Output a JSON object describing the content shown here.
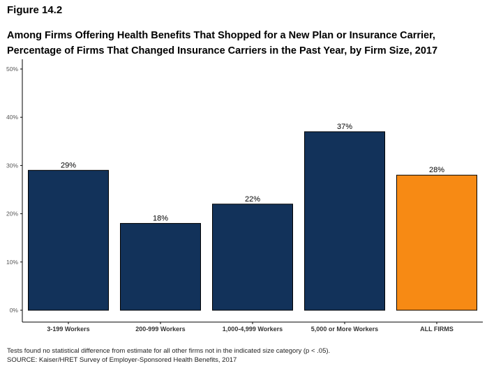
{
  "figure": {
    "label": "Figure 14.2",
    "title_line1": "Among Firms Offering Health Benefits That Shopped for a New Plan or Insurance Carrier,",
    "title_line2": "Percentage of Firms That Changed Insurance Carriers in the Past Year, by Firm Size, 2017"
  },
  "chart_data": {
    "type": "bar",
    "categories": [
      "3-199 Workers",
      "200-999 Workers",
      "1,000-4,999 Workers",
      "5,000 or More Workers",
      "ALL FIRMS"
    ],
    "values": [
      29,
      18,
      22,
      37,
      28
    ],
    "data_labels": [
      "29%",
      "18%",
      "22%",
      "37%",
      "28%"
    ],
    "ylim": [
      0,
      50
    ],
    "yticks": [
      0,
      10,
      20,
      30,
      40,
      50
    ],
    "ytick_labels": [
      "0%",
      "10%",
      "20%",
      "30%",
      "40%",
      "50%"
    ],
    "grid": false,
    "legend": "none",
    "colors": {
      "firm_size": "#12325a",
      "all_firms": "#f78a14",
      "bar_outline": "#000000",
      "axis": "#000000",
      "tick_label": "#555555"
    },
    "bar_colors": [
      "#12325a",
      "#12325a",
      "#12325a",
      "#12325a",
      "#f78a14"
    ]
  },
  "notes": {
    "line1": "Tests found no statistical difference from estimate for all other firms not in the indicated size category (p < .05).",
    "line2": "SOURCE: Kaiser/HRET Survey of Employer-Sponsored Health Benefits, 2017"
  }
}
